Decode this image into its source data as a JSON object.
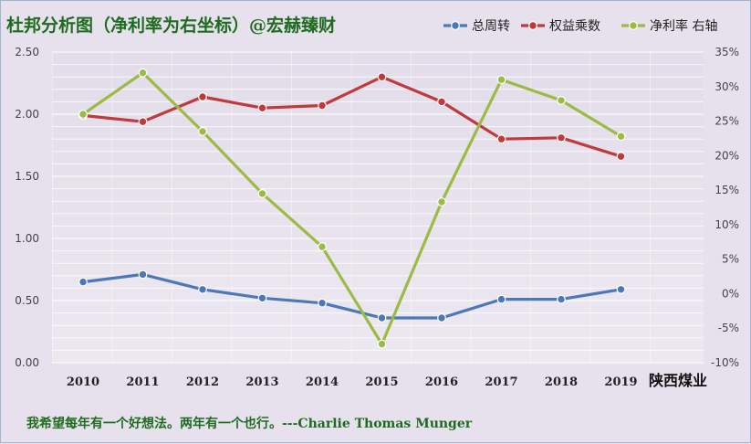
{
  "chart_data": {
    "type": "line",
    "title": "杜邦分析图（净利率为右坐标）@宏赫臻财",
    "company_label": "陕西煤业",
    "quote": "我希望每年有一个好想法。两年有一个也行。---Charlie Thomas  Munger",
    "categories": [
      "2010",
      "2011",
      "2012",
      "2013",
      "2014",
      "2015",
      "2016",
      "2017",
      "2018",
      "2019"
    ],
    "y_left": {
      "min": 0,
      "max": 2.5,
      "ticks": [
        "0.00",
        "0.50",
        "1.00",
        "1.50",
        "2.00",
        "2.50"
      ]
    },
    "y_right": {
      "min": -10,
      "max": 35,
      "ticks": [
        "-10%",
        "-5%",
        "0%",
        "5%",
        "10%",
        "15%",
        "20%",
        "25%",
        "30%",
        "35%"
      ]
    },
    "grid": true,
    "legend_position": "top-right",
    "series": [
      {
        "name": "总周转",
        "axis": "left",
        "color": "#4a78b8",
        "values": [
          0.65,
          0.71,
          0.59,
          0.52,
          0.48,
          0.36,
          0.36,
          0.51,
          0.51,
          0.59
        ]
      },
      {
        "name": "权益乘数",
        "axis": "left",
        "color": "#c0393b",
        "values": [
          1.99,
          1.94,
          2.14,
          2.05,
          2.07,
          2.3,
          2.1,
          1.8,
          1.81,
          1.66
        ]
      },
      {
        "name": "净利率 右轴",
        "axis": "right",
        "color": "#9bbb45",
        "values": [
          26.0,
          32.0,
          23.5,
          14.5,
          6.8,
          -7.3,
          13.3,
          31.0,
          28.0,
          22.8
        ]
      }
    ]
  }
}
